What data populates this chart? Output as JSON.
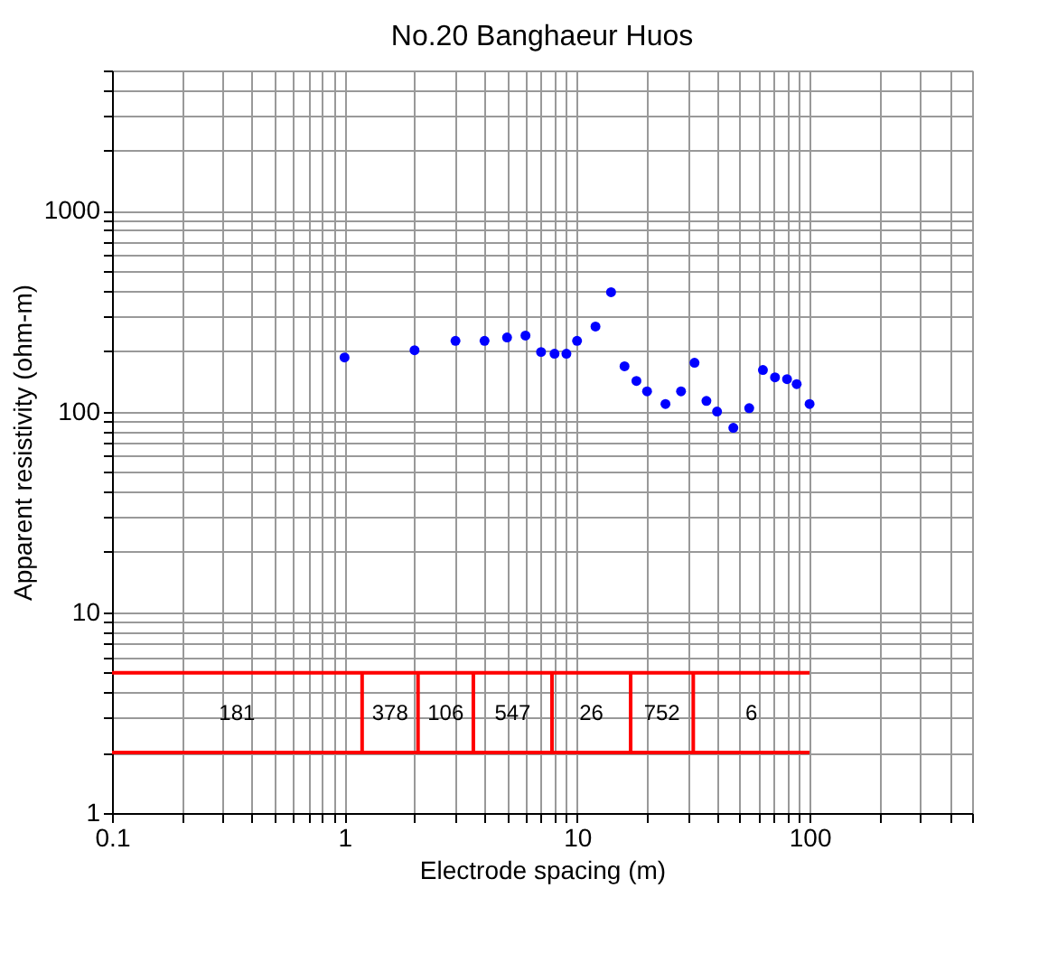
{
  "chart_data": {
    "type": "scatter",
    "title": "No.20 Banghaeur Huos",
    "xlabel": "Electrode spacing (m)",
    "ylabel": "Apparent resistivity (ohm-m)",
    "log": "xy",
    "grid": true,
    "legend": false,
    "marker": "circle",
    "xlim": [
      0.1,
      500
    ],
    "ylim": [
      1,
      5000
    ],
    "xticks": [
      0.1,
      {
        "value": 0.2,
        "label": null
      },
      {
        "value": 0.3,
        "label": null
      },
      {
        "value": 0.4,
        "label": null
      },
      {
        "value": 0.5,
        "label": null
      },
      {
        "value": 0.6,
        "label": null
      },
      {
        "value": 0.7,
        "label": null
      },
      {
        "value": 0.8,
        "label": null
      },
      {
        "value": 0.9,
        "label": null
      },
      1,
      {
        "value": 2,
        "label": null
      },
      {
        "value": 3,
        "label": null
      },
      {
        "value": 4,
        "label": null
      },
      {
        "value": 5,
        "label": null
      },
      {
        "value": 6,
        "label": null
      },
      {
        "value": 7,
        "label": null
      },
      {
        "value": 8,
        "label": null
      },
      {
        "value": 9,
        "label": null
      },
      10,
      {
        "value": 20,
        "label": null
      },
      {
        "value": 30,
        "label": null
      },
      {
        "value": 40,
        "label": null
      },
      {
        "value": 50,
        "label": null
      },
      {
        "value": 60,
        "label": null
      },
      {
        "value": 70,
        "label": null
      },
      {
        "value": 80,
        "label": null
      },
      {
        "value": 90,
        "label": null
      },
      100,
      {
        "value": 200,
        "label": null
      },
      {
        "value": 300,
        "label": null
      },
      {
        "value": 400,
        "label": null
      },
      {
        "value": 500,
        "label": null
      }
    ],
    "yticks": [
      1,
      {
        "value": 2,
        "label": null
      },
      {
        "value": 3,
        "label": null
      },
      {
        "value": 4,
        "label": null
      },
      {
        "value": 5,
        "label": null
      },
      {
        "value": 6,
        "label": null
      },
      {
        "value": 7,
        "label": null
      },
      {
        "value": 8,
        "label": null
      },
      {
        "value": 9,
        "label": null
      },
      10,
      {
        "value": 20,
        "label": null
      },
      {
        "value": 30,
        "label": null
      },
      {
        "value": 40,
        "label": null
      },
      {
        "value": 50,
        "label": null
      },
      {
        "value": 60,
        "label": null
      },
      {
        "value": 70,
        "label": null
      },
      {
        "value": 80,
        "label": null
      },
      {
        "value": 90,
        "label": null
      },
      100,
      {
        "value": 200,
        "label": null
      },
      {
        "value": 300,
        "label": null
      },
      {
        "value": 400,
        "label": null
      },
      {
        "value": 500,
        "label": null
      },
      {
        "value": 600,
        "label": null
      },
      {
        "value": 700,
        "label": null
      },
      {
        "value": 800,
        "label": null
      },
      {
        "value": 900,
        "label": null
      },
      1000,
      {
        "value": 2000,
        "label": null
      },
      {
        "value": 3000,
        "label": null
      },
      {
        "value": 4000,
        "label": null
      },
      {
        "value": 5000,
        "label": null
      }
    ],
    "x": [
      1,
      2,
      3,
      4,
      5,
      6,
      7,
      8,
      9,
      10,
      12,
      14,
      16,
      18,
      20,
      24,
      28,
      32,
      36,
      40,
      47,
      55,
      63,
      71,
      80,
      88,
      100
    ],
    "series": [
      {
        "color": "#0000ff",
        "values": [
          186,
          202,
          225,
          225,
          234,
          239,
          198,
          194,
          194,
          225,
          265,
          393,
          168,
          142,
          126,
          109,
          126,
          175,
          113,
          100,
          83,
          104,
          161,
          148,
          145,
          137,
          109
        ]
      },
      {
        "type": "line",
        "color": "#ff0000",
        "marker": "none",
        "x": [
          0.1,
          100
        ],
        "values": [
          5,
          5
        ]
      },
      {
        "type": "line",
        "color": "#ff0000",
        "marker": "none",
        "x": [
          0.1,
          100
        ],
        "values": [
          2,
          2
        ]
      },
      {
        "type": "line",
        "color": "#ff0000",
        "marker": "none",
        "x": [
          1.19,
          1.19
        ],
        "values": [
          2,
          5
        ]
      },
      {
        "type": "line",
        "color": "#ff0000",
        "marker": "none",
        "x": [
          2.07,
          2.07
        ],
        "values": [
          2,
          5
        ]
      },
      {
        "type": "line",
        "color": "#ff0000",
        "marker": "none",
        "x": [
          3.58,
          3.58
        ],
        "values": [
          2,
          5
        ]
      },
      {
        "type": "line",
        "color": "#ff0000",
        "marker": "none",
        "x": [
          7.8,
          7.8
        ],
        "values": [
          2,
          5
        ]
      },
      {
        "type": "line",
        "color": "#ff0000",
        "marker": "none",
        "x": [
          17,
          17
        ],
        "values": [
          2,
          5
        ]
      },
      {
        "type": "line",
        "color": "#ff0000",
        "marker": "none",
        "x": [
          31.6,
          31.6
        ],
        "values": [
          2,
          5
        ]
      }
    ],
    "annotations": [
      "181",
      "378",
      "106",
      "547",
      "26",
      "752",
      "6"
    ]
  }
}
